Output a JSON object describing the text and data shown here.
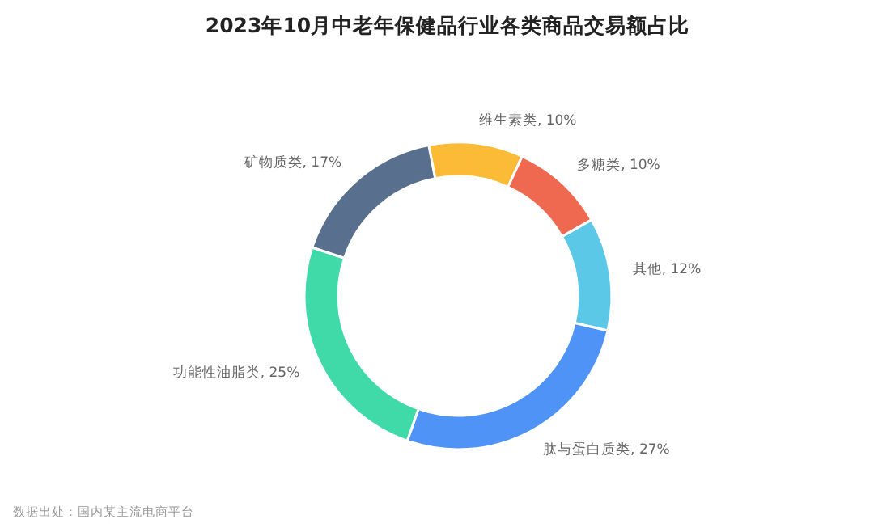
{
  "chart_data": {
    "type": "donut",
    "title": "2023年10月中老年保健品行业各类商品交易额占比",
    "categories": [
      "维生素类",
      "多糖类",
      "其他",
      "肽与蛋白质类",
      "功能性油脂类",
      "矿物质类"
    ],
    "values": [
      10,
      10,
      12,
      27,
      25,
      17
    ],
    "value_labels": [
      "10%",
      "10%",
      "12%",
      "27%",
      "25%",
      "17%"
    ],
    "colors": [
      "#fbbb37",
      "#ef6950",
      "#5bc8e8",
      "#4e93f5",
      "#40d9a8",
      "#596f8e"
    ],
    "annotations": [
      "数据出处：国内某主流电商平台"
    ]
  }
}
